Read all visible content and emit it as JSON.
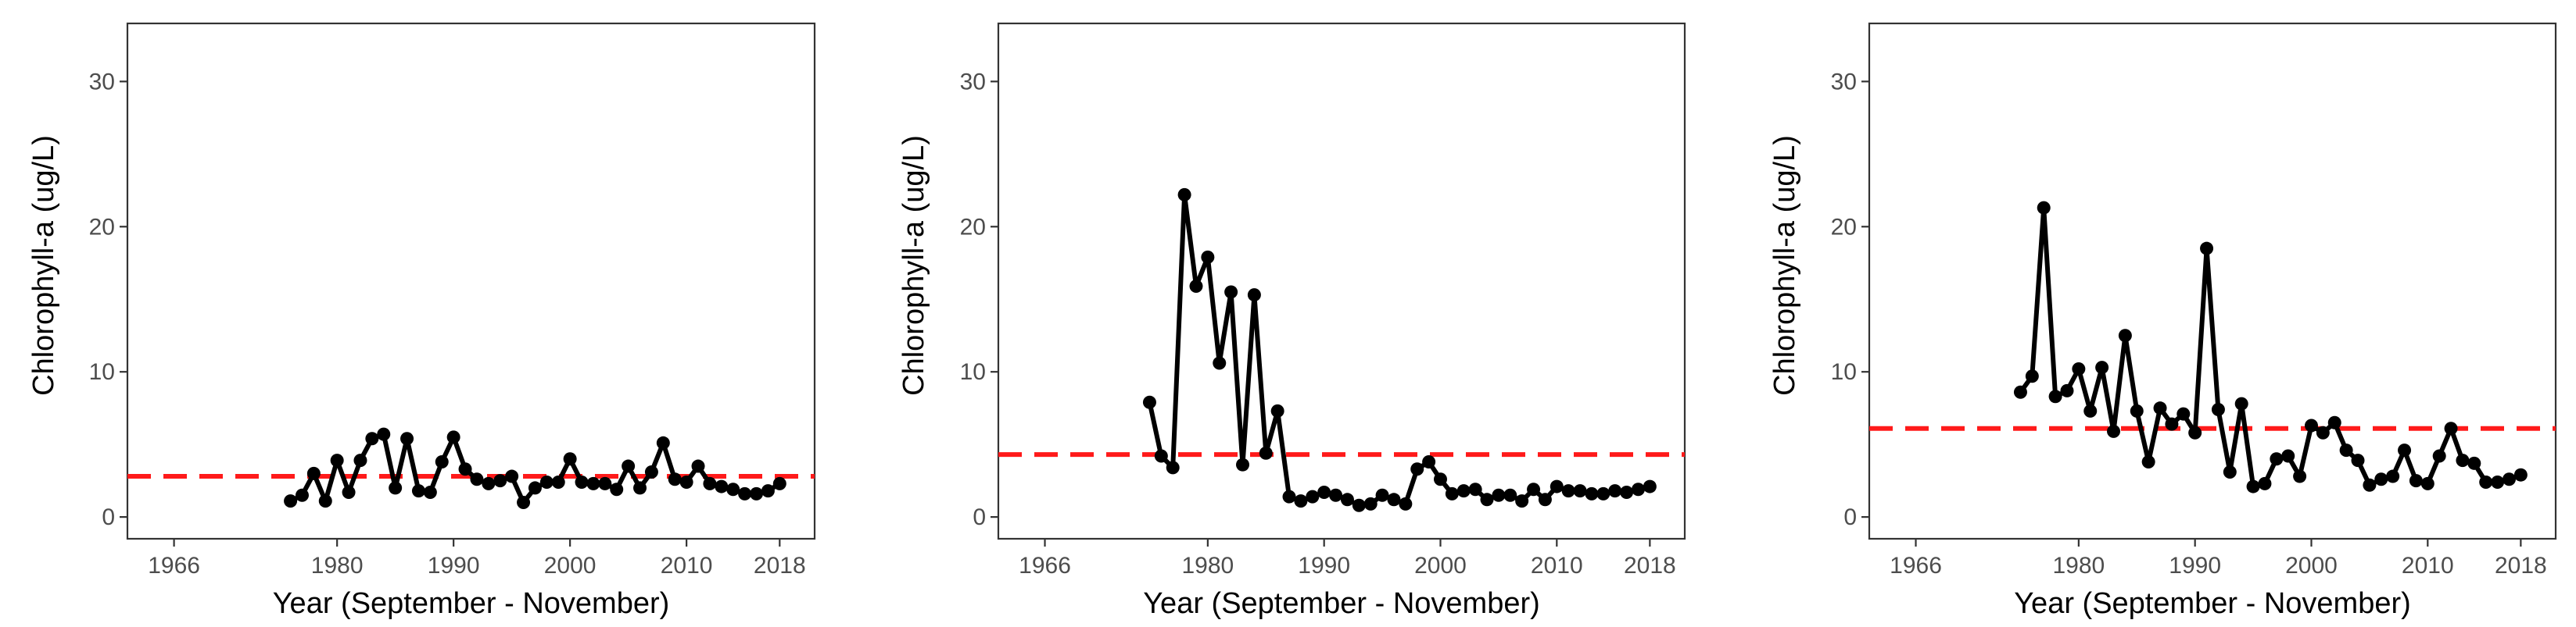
{
  "chart_data": [
    {
      "type": "line",
      "xlabel": "Year (September - November)",
      "ylabel": "Chlorophyll-a (ug/L)",
      "xlim": [
        1962,
        2021
      ],
      "ylim": [
        -1.5,
        34
      ],
      "xticks": [
        1966,
        1980,
        1990,
        2000,
        2010,
        2018
      ],
      "yticks": [
        0,
        10,
        20,
        30
      ],
      "grid": false,
      "legend": "none",
      "threshold": 2.8,
      "threshold_style": "dashed",
      "threshold_color": "#ff1a1a",
      "series_color": "#000000",
      "x": [
        1976,
        1977,
        1978,
        1979,
        1980,
        1981,
        1982,
        1983,
        1984,
        1985,
        1986,
        1987,
        1988,
        1989,
        1990,
        1991,
        1992,
        1993,
        1994,
        1995,
        1996,
        1997,
        1998,
        1999,
        2000,
        2001,
        2002,
        2003,
        2004,
        2005,
        2006,
        2007,
        2008,
        2009,
        2010,
        2011,
        2012,
        2013,
        2014,
        2015,
        2016,
        2017,
        2018
      ],
      "y": [
        1.1,
        1.5,
        3.0,
        1.1,
        3.9,
        1.7,
        3.9,
        5.4,
        5.7,
        2.0,
        5.4,
        1.8,
        1.7,
        3.8,
        5.5,
        3.3,
        2.6,
        2.3,
        2.5,
        2.8,
        1.0,
        2.0,
        2.4,
        2.4,
        4.0,
        2.4,
        2.3,
        2.3,
        1.9,
        3.5,
        2.0,
        3.1,
        5.1,
        2.6,
        2.4,
        3.5,
        2.3,
        2.1,
        1.9,
        1.6,
        1.6,
        1.8,
        2.3
      ]
    },
    {
      "type": "line",
      "xlabel": "Year (September - November)",
      "ylabel": "Chlorophyll-a (ug/L)",
      "xlim": [
        1962,
        2021
      ],
      "ylim": [
        -1.5,
        34
      ],
      "xticks": [
        1966,
        1980,
        1990,
        2000,
        2010,
        2018
      ],
      "yticks": [
        0,
        10,
        20,
        30
      ],
      "grid": false,
      "legend": "none",
      "threshold": 4.3,
      "threshold_style": "dashed",
      "threshold_color": "#ff1a1a",
      "series_color": "#000000",
      "x": [
        1975,
        1976,
        1977,
        1978,
        1979,
        1980,
        1981,
        1982,
        1983,
        1984,
        1985,
        1986,
        1987,
        1988,
        1989,
        1990,
        1991,
        1992,
        1993,
        1994,
        1995,
        1996,
        1997,
        1998,
        1999,
        2000,
        2001,
        2002,
        2003,
        2004,
        2005,
        2006,
        2007,
        2008,
        2009,
        2010,
        2011,
        2012,
        2013,
        2014,
        2015,
        2016,
        2017,
        2018
      ],
      "y": [
        7.9,
        4.2,
        3.4,
        22.2,
        15.9,
        17.9,
        10.6,
        15.5,
        3.6,
        15.3,
        4.4,
        7.3,
        1.4,
        1.1,
        1.4,
        1.7,
        1.5,
        1.2,
        0.8,
        0.9,
        1.5,
        1.2,
        0.9,
        3.3,
        3.8,
        2.6,
        1.6,
        1.8,
        1.9,
        1.2,
        1.5,
        1.5,
        1.1,
        1.9,
        1.2,
        2.1,
        1.8,
        1.8,
        1.6,
        1.6,
        1.8,
        1.7,
        1.9,
        2.1
      ]
    },
    {
      "type": "line",
      "xlabel": "Year (September - November)",
      "ylabel": "Chlorophyll-a (ug/L)",
      "xlim": [
        1962,
        2021
      ],
      "ylim": [
        -1.5,
        34
      ],
      "xticks": [
        1966,
        1980,
        1990,
        2000,
        2010,
        2018
      ],
      "yticks": [
        0,
        10,
        20,
        30
      ],
      "grid": false,
      "legend": "none",
      "threshold": 6.1,
      "threshold_style": "dashed",
      "threshold_color": "#ff1a1a",
      "series_color": "#000000",
      "x": [
        1975,
        1976,
        1977,
        1978,
        1979,
        1980,
        1981,
        1982,
        1983,
        1984,
        1985,
        1986,
        1987,
        1988,
        1989,
        1990,
        1991,
        1992,
        1993,
        1994,
        1995,
        1996,
        1997,
        1998,
        1999,
        2000,
        2001,
        2002,
        2003,
        2004,
        2005,
        2006,
        2007,
        2008,
        2009,
        2010,
        2011,
        2012,
        2013,
        2014,
        2015,
        2016,
        2017,
        2018
      ],
      "y": [
        8.6,
        9.7,
        21.3,
        8.3,
        8.7,
        10.2,
        7.3,
        10.3,
        5.9,
        12.5,
        7.3,
        3.8,
        7.5,
        6.4,
        7.1,
        5.8,
        18.5,
        7.4,
        3.1,
        7.8,
        2.1,
        2.3,
        4.0,
        4.2,
        2.8,
        6.3,
        5.8,
        6.5,
        4.6,
        3.9,
        2.2,
        2.6,
        2.8,
        4.6,
        2.5,
        2.3,
        4.2,
        6.1,
        3.9,
        3.7,
        2.4,
        2.4,
        2.6,
        2.9
      ]
    }
  ]
}
